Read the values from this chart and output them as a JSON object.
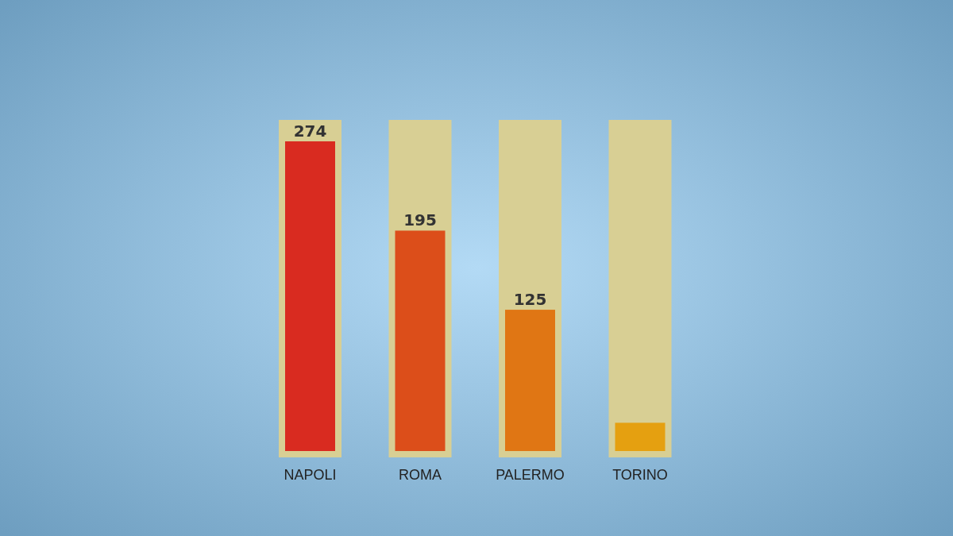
{
  "chart_data": {
    "type": "bar",
    "categories": [
      "NAPOLI",
      "ROMA",
      "PALERMO",
      "TORINO"
    ],
    "values": [
      274,
      195,
      125,
      25
    ],
    "colors": [
      "#d92b20",
      "#dc4e1a",
      "#e07614",
      "#e5a010"
    ],
    "value_labels": [
      "274",
      "195",
      "125",
      null
    ]
  }
}
